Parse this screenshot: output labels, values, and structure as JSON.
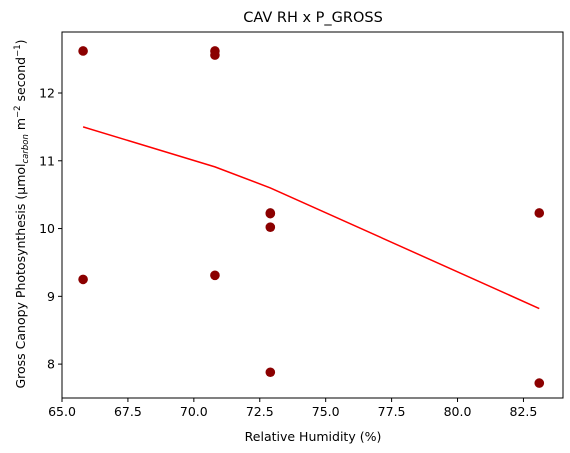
{
  "chart_data": {
    "type": "scatter",
    "title": "CAV RH x P_GROSS",
    "xlabel": "Relative Humidity (%)",
    "ylabel": {
      "prefix": "Gross Canopy Photosynthesis (",
      "mu": "μmol",
      "sub": "carbon",
      "mid": " m",
      "sup1": "−2",
      "mid2": " second",
      "sup2": "−1",
      "suffix": ")"
    },
    "xlim": [
      65.0,
      84.0
    ],
    "ylim": [
      7.5,
      12.9
    ],
    "xticks": [
      65.0,
      67.5,
      70.0,
      72.5,
      75.0,
      77.5,
      80.0,
      82.5
    ],
    "xtick_labels": [
      "65.0",
      "67.5",
      "70.0",
      "72.5",
      "75.0",
      "77.5",
      "80.0",
      "82.5"
    ],
    "yticks": [
      8,
      9,
      10,
      11,
      12
    ],
    "ytick_labels": [
      "8",
      "9",
      "10",
      "11",
      "12"
    ],
    "grid": false,
    "series": [
      {
        "kind": "scatter",
        "color": "#8b0000",
        "points": [
          {
            "x": 65.8,
            "y": 12.62
          },
          {
            "x": 65.8,
            "y": 9.25
          },
          {
            "x": 70.8,
            "y": 12.62
          },
          {
            "x": 70.8,
            "y": 12.56
          },
          {
            "x": 70.8,
            "y": 9.31
          },
          {
            "x": 72.9,
            "y": 10.23
          },
          {
            "x": 72.9,
            "y": 10.22
          },
          {
            "x": 72.9,
            "y": 10.02
          },
          {
            "x": 72.9,
            "y": 7.88
          },
          {
            "x": 83.1,
            "y": 10.23
          },
          {
            "x": 83.1,
            "y": 7.72
          }
        ]
      },
      {
        "kind": "line",
        "color": "#ff0000",
        "points": [
          {
            "x": 65.8,
            "y": 11.5
          },
          {
            "x": 70.8,
            "y": 10.91
          },
          {
            "x": 72.9,
            "y": 10.6
          },
          {
            "x": 83.1,
            "y": 8.82
          }
        ]
      }
    ]
  }
}
